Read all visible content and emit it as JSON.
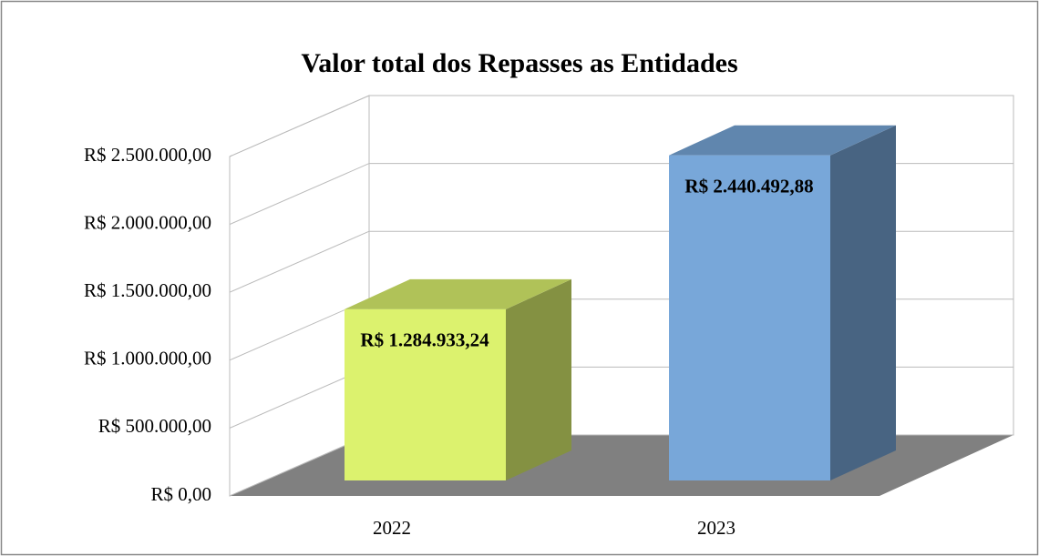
{
  "chart_data": {
    "type": "bar3d",
    "title": "Valor total dos Repasses as Entidades",
    "categories": [
      "2022",
      "2023"
    ],
    "values": [
      1284933.24,
      2440492.88
    ],
    "value_labels": [
      "R$ 1.284.933,24",
      "R$ 2.440.492,88"
    ],
    "colors": [
      "#dcf26e",
      "#78a7d9"
    ],
    "ylim": [
      0,
      2500000
    ],
    "yticks": [
      {
        "value": 0,
        "label": "R$ 0,00"
      },
      {
        "value": 500000,
        "label": "R$ 500.000,00"
      },
      {
        "value": 1000000,
        "label": "R$ 1.000.000,00"
      },
      {
        "value": 1500000,
        "label": "R$ 1.500.000,00"
      },
      {
        "value": 2000000,
        "label": "R$ 2.000.000,00"
      },
      {
        "value": 2500000,
        "label": "R$ 2.500.000,00"
      }
    ],
    "grid": true
  }
}
